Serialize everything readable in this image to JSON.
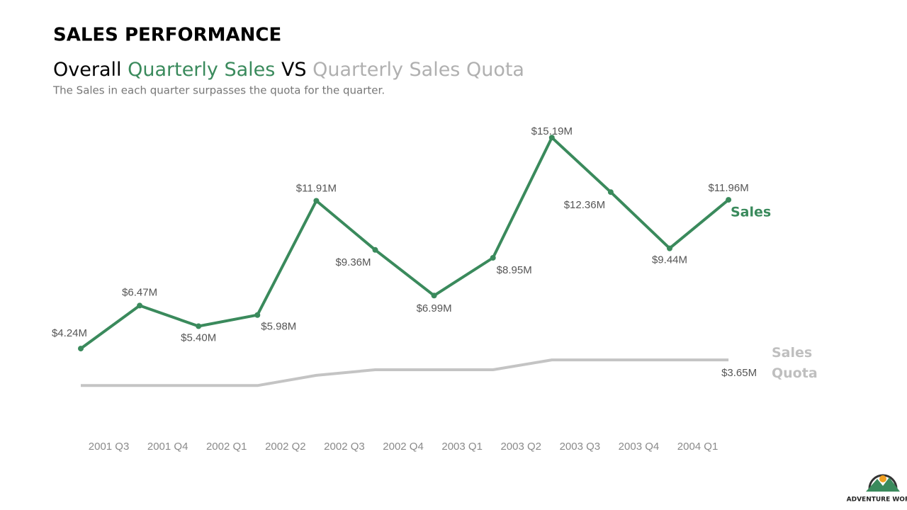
{
  "chart_data": {
    "type": "line",
    "title": "SALES PERFORMANCE",
    "subtitle_parts": [
      "Overall",
      "Quarterly Sales",
      "VS",
      "Quarterly Sales Quota"
    ],
    "description": "The Sales in each quarter surpasses the quota for the quarter.",
    "categories": [
      "2001 Q3",
      "2001 Q4",
      "2002 Q1",
      "2002 Q2",
      "2002 Q3",
      "2002 Q4",
      "2003 Q1",
      "2003 Q2",
      "2003 Q3",
      "2003 Q4",
      "2004 Q1",
      null
    ],
    "series": [
      {
        "name": "Sales",
        "color": "#3a8a5c",
        "values": [
          4.24,
          6.47,
          5.4,
          5.98,
          11.91,
          9.36,
          6.99,
          8.95,
          15.19,
          12.36,
          9.44,
          11.96
        ],
        "value_labels": [
          "$4.24M",
          "$6.47M",
          "$5.40M",
          "$5.98M",
          "$11.91M",
          "$9.36M",
          "$6.99M",
          "$8.95M",
          "$15.19M",
          "$12.36M",
          "$9.44M",
          "$11.96M"
        ]
      },
      {
        "name": "Sales Quota",
        "color": "#c4c4c4",
        "values": [
          2.32,
          2.32,
          2.32,
          2.32,
          2.85,
          3.14,
          3.14,
          3.14,
          3.65,
          3.65,
          3.65,
          3.65
        ],
        "value_labels": [
          null,
          null,
          null,
          null,
          null,
          null,
          null,
          null,
          null,
          null,
          null,
          "$3.65M"
        ]
      }
    ],
    "logo": "ADVENTURE WORKS"
  }
}
